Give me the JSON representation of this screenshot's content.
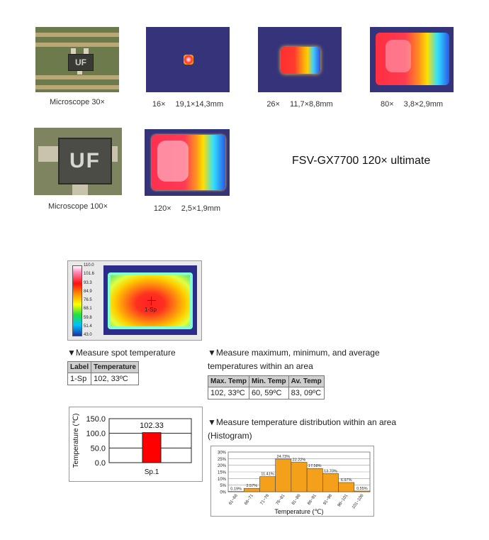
{
  "top_row": [
    {
      "caption": "Microscope 30×"
    },
    {
      "caption": "16×　 19,1×14,3mm"
    },
    {
      "caption": "26×　 11,7×8,8mm"
    },
    {
      "caption": "80×　 3,8×2,9mm"
    }
  ],
  "second_row": [
    {
      "caption": "Microscope 100×"
    },
    {
      "caption": "120×　 2,5×1,9mm"
    }
  ],
  "chip_marking": "UF",
  "ultimate_label": "FSV-GX7700 120× ultimate",
  "thermal_image": {
    "scale_ticks": [
      "110.0",
      "101.6",
      "93.3",
      "84.9",
      "76.5",
      "68.1",
      "59.8",
      "51.4",
      "43.0"
    ],
    "spot_label": "1-Sp"
  },
  "spot_section": {
    "title": "▼Measure spot temperature",
    "headers": [
      "Label",
      "Temperature"
    ],
    "row": [
      "1-Sp",
      "102, 33ºC"
    ]
  },
  "area_section": {
    "title_line1": "▼Measure maximum, minimum, and average",
    "title_line2": "temperatures within an area",
    "headers": [
      "Max. Temp",
      "Min. Temp",
      "Av. Temp"
    ],
    "row": [
      "102, 33ºC",
      "60, 59ºC",
      "83, 09ºC"
    ]
  },
  "bar_chart": {
    "ylabel": "Temperature (℃)",
    "yticks": [
      "150.0",
      "100.0",
      "50.0",
      "0.0"
    ],
    "category": "Sp.1",
    "value": 102.33,
    "value_label": "102.33",
    "ylim": [
      0,
      150
    ],
    "bar_color": "#ff0000"
  },
  "hist_section": {
    "title_line1": "▼Measure temperature distribution within an area",
    "title_line2": "(Histogram)"
  },
  "chart_data": [
    {
      "type": "bar",
      "categories": [
        "Sp.1"
      ],
      "values": [
        102.33
      ],
      "ylabel": "Temperature (℃)",
      "ylim": [
        0,
        150
      ]
    },
    {
      "type": "bar",
      "categories": [
        "61~66",
        "66~71",
        "71~76",
        "76~81",
        "81~86",
        "86~91",
        "91~96",
        "96~101",
        "101~106"
      ],
      "values": [
        0.19,
        2.57,
        11.41,
        24.73,
        22.22,
        17.58,
        13.7,
        6.97,
        0.55
      ],
      "value_labels": [
        "0.19%",
        "2.57%",
        "11.41%",
        "24.73%",
        "22.22%",
        "17.58%",
        "13.70%",
        "6.97%",
        "0.55%"
      ],
      "yticks": [
        "30%",
        "25%",
        "20%",
        "15%",
        "10%",
        "5%",
        "0%"
      ],
      "xlabel": "Temperature (℃)",
      "ylim": [
        0,
        30
      ],
      "bar_color": "#f5a01a"
    }
  ]
}
